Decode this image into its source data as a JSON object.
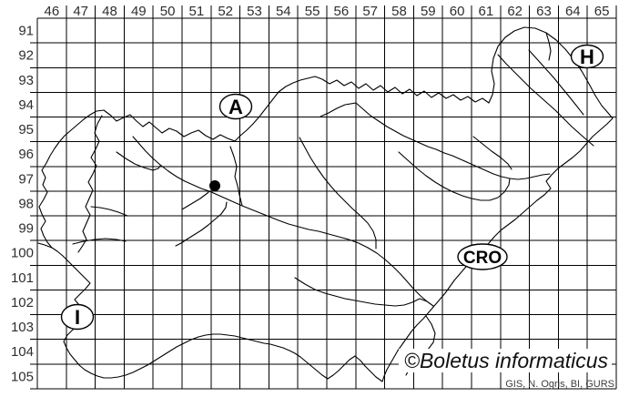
{
  "map": {
    "grid": {
      "columns": [
        "46",
        "47",
        "48",
        "49",
        "50",
        "51",
        "52",
        "53",
        "54",
        "55",
        "56",
        "57",
        "58",
        "59",
        "60",
        "61",
        "62",
        "63",
        "64",
        "65"
      ],
      "rows": [
        "91",
        "92",
        "93",
        "94",
        "95",
        "96",
        "97",
        "98",
        "99",
        "100",
        "101",
        "102",
        "103",
        "104",
        "105"
      ]
    },
    "country_labels": {
      "austria": "A",
      "hungary": "H",
      "italy": "I",
      "croatia": "CRO"
    },
    "record_point": {
      "grid_column": "52",
      "grid_row": "97"
    },
    "footer": {
      "copyright": "©Boletus informaticus",
      "credits": "GIS, N. Ogris, BI, GURS"
    },
    "colors": {
      "background": "#ffffff",
      "lines": "#000000",
      "labels": "#2e2e2e",
      "record_dot": "#000000"
    }
  }
}
